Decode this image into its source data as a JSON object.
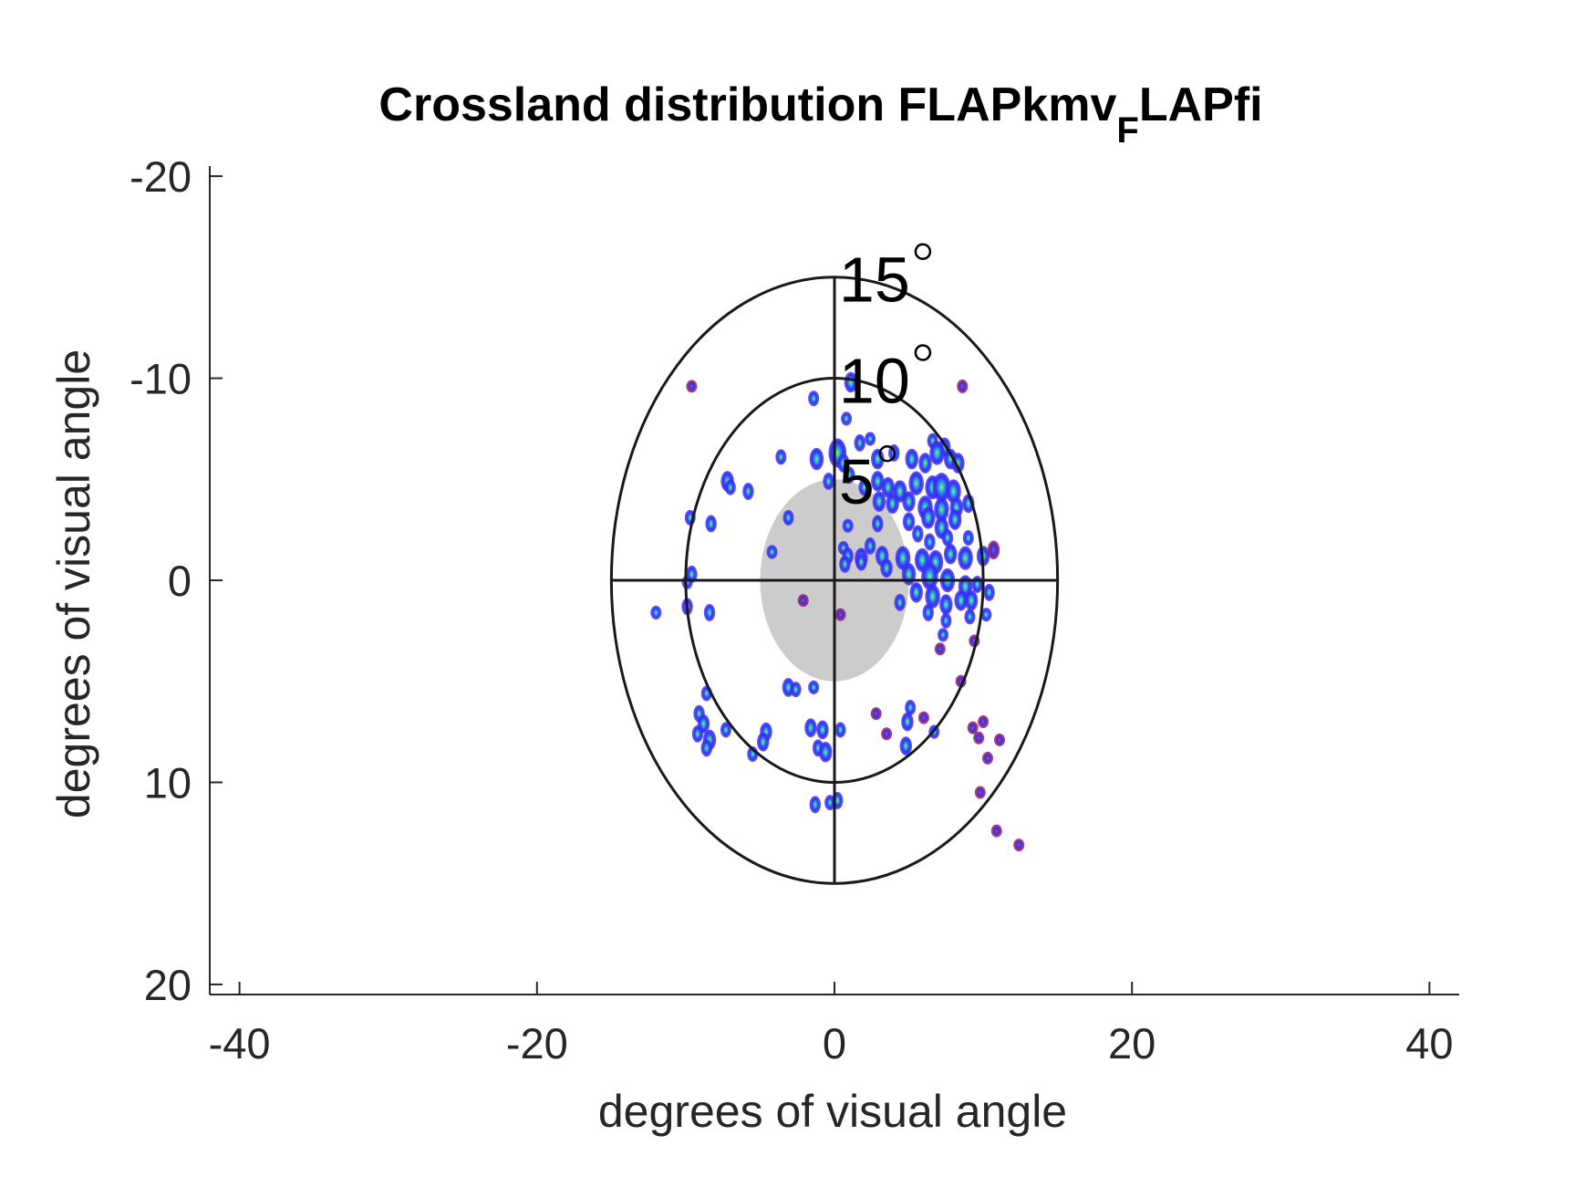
{
  "chart_data": {
    "type": "heatmap",
    "title": {
      "main": "Crossland distribution FLAPkmv",
      "subscript": "F",
      "suffix": "LAPfi"
    },
    "xlabel": "degrees of visual angle",
    "ylabel": "degrees of visual angle",
    "xlim": [
      -42,
      42
    ],
    "ylim": [
      -20.5,
      20.5
    ],
    "y_reversed": true,
    "x_ticks": [
      -40,
      -20,
      0,
      20,
      40
    ],
    "x_tick_labels": [
      "-40",
      "-20",
      "0",
      "20",
      "40"
    ],
    "y_ticks": [
      -20,
      -10,
      0,
      10,
      20
    ],
    "y_tick_labels": [
      "-20",
      "-10",
      "0",
      "10",
      "20"
    ],
    "grid": false,
    "legend": "none",
    "rings": [
      {
        "radius_x": 15,
        "radius_y": 15,
        "label": "15",
        "label_pos": [
          0.3,
          -15.5
        ]
      },
      {
        "radius_x": 10,
        "radius_y": 10,
        "label": "10",
        "label_pos": [
          0.3,
          -10.5
        ]
      },
      {
        "radius_x": 5,
        "radius_y": 5,
        "label": "5",
        "label_pos": [
          0.3,
          -5.5
        ],
        "filled": true
      }
    ],
    "ring_unit_symbol": "°",
    "crosshair_extent": [
      -15,
      15
    ],
    "fill_ellipse": {
      "cx": 0,
      "cy": 0,
      "rx": 5,
      "ry": 5,
      "color": "#cccccc"
    },
    "colors": {
      "ring": "#1a1a1a",
      "axis": "#262626",
      "blob_edge": "#3b2ff5",
      "blob_mid": "#2c86e8",
      "blob_core": "#37d0c4",
      "blob_peak": "#c8e03a",
      "blob_outlier": "#8a1f7a"
    },
    "points": [
      [
        -9.6,
        -9.6,
        0.5
      ],
      [
        1.1,
        -9.8,
        1.0
      ],
      [
        8.6,
        -9.6,
        0.6
      ],
      [
        -1.4,
        -9.0,
        0.7
      ],
      [
        0.8,
        -8.0,
        0.6
      ],
      [
        1.7,
        -6.8,
        0.8
      ],
      [
        2.4,
        -7.0,
        0.6
      ],
      [
        6.6,
        -6.9,
        0.7
      ],
      [
        7.4,
        -6.6,
        0.9
      ],
      [
        -3.6,
        -6.1,
        0.7
      ],
      [
        -1.2,
        -6.0,
        1.1
      ],
      [
        0.2,
        -6.3,
        1.5
      ],
      [
        0.6,
        -5.8,
        0.9
      ],
      [
        2.9,
        -6.0,
        1.0
      ],
      [
        4.0,
        -6.3,
        0.8
      ],
      [
        5.2,
        -6.0,
        1.0
      ],
      [
        6.1,
        -5.8,
        1.0
      ],
      [
        6.9,
        -6.3,
        1.2
      ],
      [
        7.8,
        -6.0,
        1.0
      ],
      [
        8.3,
        -5.8,
        1.0
      ],
      [
        -7.2,
        -4.9,
        1.0
      ],
      [
        -7.0,
        -4.6,
        0.7
      ],
      [
        -5.8,
        -4.4,
        0.8
      ],
      [
        -0.4,
        -4.9,
        0.8
      ],
      [
        1.0,
        -5.2,
        0.8
      ],
      [
        2.0,
        -4.6,
        0.8
      ],
      [
        2.9,
        -4.9,
        1.0
      ],
      [
        3.6,
        -4.6,
        1.0
      ],
      [
        4.4,
        -4.4,
        1.1
      ],
      [
        5.5,
        -4.8,
        1.2
      ],
      [
        6.6,
        -4.6,
        1.2
      ],
      [
        7.2,
        -4.6,
        1.5
      ],
      [
        8.0,
        -4.4,
        1.2
      ],
      [
        3.0,
        -3.9,
        1.0
      ],
      [
        3.9,
        -3.8,
        1.0
      ],
      [
        5.0,
        -3.9,
        1.0
      ],
      [
        6.1,
        -3.6,
        1.2
      ],
      [
        7.2,
        -3.5,
        1.2
      ],
      [
        8.2,
        -3.6,
        1.0
      ],
      [
        9.0,
        -3.8,
        0.9
      ],
      [
        -9.7,
        -3.1,
        0.7
      ],
      [
        -3.1,
        -3.1,
        0.7
      ],
      [
        -8.3,
        -2.8,
        0.8
      ],
      [
        0.9,
        -2.7,
        0.6
      ],
      [
        2.9,
        -2.8,
        0.8
      ],
      [
        5.0,
        -2.9,
        0.9
      ],
      [
        6.3,
        -3.1,
        1.1
      ],
      [
        7.2,
        -2.6,
        1.1
      ],
      [
        8.1,
        -3.0,
        1.0
      ],
      [
        5.6,
        -2.3,
        0.8
      ],
      [
        2.4,
        -1.7,
        0.8
      ],
      [
        6.4,
        -1.9,
        0.8
      ],
      [
        7.6,
        -2.1,
        0.8
      ],
      [
        9.0,
        -2.1,
        0.7
      ],
      [
        0.6,
        -1.6,
        0.6
      ],
      [
        -4.2,
        -1.4,
        0.6
      ],
      [
        0.9,
        -1.2,
        0.8
      ],
      [
        1.8,
        -1.1,
        1.0
      ],
      [
        3.2,
        -1.2,
        1.0
      ],
      [
        4.6,
        -1.1,
        1.2
      ],
      [
        5.9,
        -1.0,
        1.2
      ],
      [
        6.8,
        -0.9,
        1.2
      ],
      [
        7.8,
        -1.3,
        1.0
      ],
      [
        8.8,
        -1.1,
        1.2
      ],
      [
        10.0,
        -1.2,
        1.0
      ],
      [
        10.7,
        -1.5,
        0.9
      ],
      [
        -9.9,
        0.1,
        0.6
      ],
      [
        -9.6,
        -0.3,
        0.8
      ],
      [
        0.7,
        -0.8,
        0.8
      ],
      [
        1.8,
        -0.9,
        0.8
      ],
      [
        3.5,
        -0.6,
        0.9
      ],
      [
        5.0,
        -0.3,
        1.1
      ],
      [
        6.4,
        -0.2,
        1.4
      ],
      [
        7.6,
        0.0,
        1.2
      ],
      [
        8.8,
        0.3,
        1.1
      ],
      [
        10.4,
        0.6,
        0.8
      ],
      [
        5.5,
        0.6,
        1.0
      ],
      [
        6.6,
        0.8,
        1.2
      ],
      [
        7.5,
        1.2,
        1.0
      ],
      [
        8.5,
        1.0,
        1.0
      ],
      [
        9.2,
        1.0,
        1.0
      ],
      [
        9.6,
        0.2,
        0.8
      ],
      [
        -12.0,
        1.6,
        0.6
      ],
      [
        -9.9,
        1.3,
        0.8
      ],
      [
        -8.4,
        1.6,
        0.8
      ],
      [
        -2.1,
        1.0,
        0.5
      ],
      [
        0.4,
        1.7,
        0.5
      ],
      [
        4.4,
        1.1,
        0.8
      ],
      [
        6.3,
        1.6,
        0.8
      ],
      [
        7.5,
        2.0,
        0.7
      ],
      [
        9.1,
        1.8,
        0.7
      ],
      [
        10.2,
        1.7,
        0.6
      ],
      [
        7.3,
        2.7,
        0.6
      ],
      [
        7.1,
        3.4,
        0.5
      ],
      [
        9.4,
        3.0,
        0.5
      ],
      [
        -8.6,
        5.6,
        0.7
      ],
      [
        -3.1,
        5.3,
        0.9
      ],
      [
        -2.6,
        5.4,
        0.7
      ],
      [
        -1.4,
        5.3,
        0.6
      ],
      [
        8.5,
        5.0,
        0.5
      ],
      [
        -9.1,
        6.6,
        0.8
      ],
      [
        -8.8,
        7.1,
        0.9
      ],
      [
        2.8,
        6.6,
        0.5
      ],
      [
        5.1,
        6.3,
        0.7
      ],
      [
        6.0,
        6.8,
        0.5
      ],
      [
        -9.2,
        7.6,
        0.8
      ],
      [
        -8.4,
        7.9,
        1.0
      ],
      [
        -7.3,
        7.4,
        0.7
      ],
      [
        -4.6,
        7.5,
        0.9
      ],
      [
        -1.6,
        7.3,
        0.9
      ],
      [
        -0.8,
        7.4,
        0.9
      ],
      [
        0.4,
        7.4,
        0.7
      ],
      [
        3.5,
        7.6,
        0.4
      ],
      [
        4.9,
        7.0,
        0.9
      ],
      [
        6.7,
        7.5,
        0.6
      ],
      [
        10.0,
        7.0,
        0.5
      ],
      [
        9.3,
        7.3,
        0.5
      ],
      [
        11.1,
        7.9,
        0.5
      ],
      [
        -4.8,
        8.0,
        0.9
      ],
      [
        -8.6,
        8.3,
        0.8
      ],
      [
        -1.1,
        8.3,
        0.8
      ],
      [
        -0.6,
        8.5,
        1.0
      ],
      [
        4.8,
        8.2,
        0.9
      ],
      [
        9.7,
        7.8,
        0.5
      ],
      [
        -5.5,
        8.6,
        0.7
      ],
      [
        10.3,
        8.8,
        0.5
      ],
      [
        -1.3,
        11.1,
        0.8
      ],
      [
        -0.3,
        11.0,
        0.7
      ],
      [
        0.2,
        10.9,
        0.8
      ],
      [
        9.8,
        10.5,
        0.5
      ],
      [
        10.9,
        12.4,
        0.5
      ],
      [
        12.4,
        13.1,
        0.5
      ]
    ]
  }
}
